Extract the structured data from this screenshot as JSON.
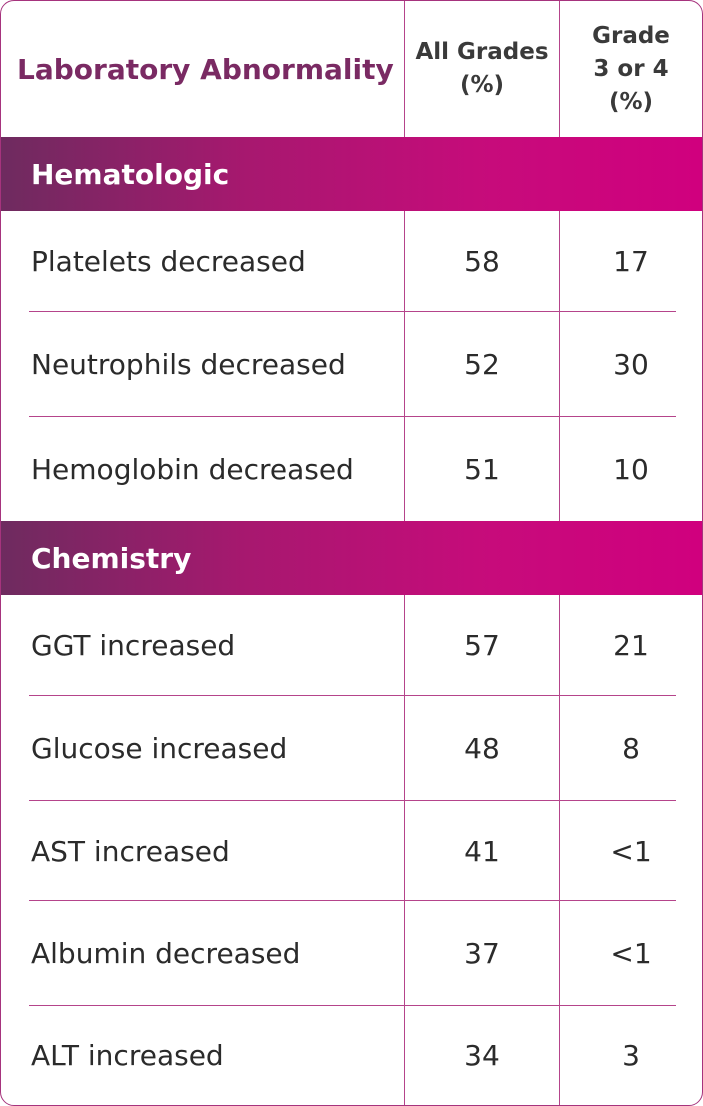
{
  "header": {
    "label_col": "Laboratory Abnormality",
    "all_grades_col": "All Grades\n(%)",
    "grade34_col": "Grade\n3 or 4\n(%)"
  },
  "sections": {
    "hematologic": {
      "title": "Hematologic",
      "rows": [
        {
          "label": "Platelets decreased",
          "all": "58",
          "g34": "17"
        },
        {
          "label": "Neutrophils decreased",
          "all": "52",
          "g34": "30"
        },
        {
          "label": "Hemoglobin decreased",
          "all": "51",
          "g34": "10"
        }
      ]
    },
    "chemistry": {
      "title": "Chemistry",
      "rows": [
        {
          "label": "GGT increased",
          "all": "57",
          "g34": "21"
        },
        {
          "label": "Glucose increased",
          "all": "48",
          "g34": "8"
        },
        {
          "label": "AST increased",
          "all": "41",
          "g34": "<1"
        },
        {
          "label": "Albumin decreased",
          "all": "37",
          "g34": "<1"
        },
        {
          "label": "ALT increased",
          "all": "34",
          "g34": "3"
        }
      ]
    }
  },
  "colors": {
    "accent_purple": "#7a2a63",
    "gradient_start": "#6e2b5f",
    "gradient_end": "#d0007e",
    "border": "#b5448b"
  }
}
